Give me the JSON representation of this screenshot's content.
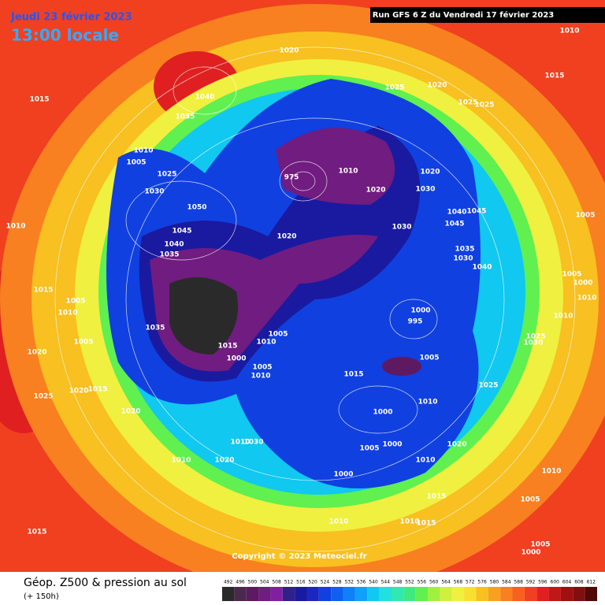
{
  "header": {
    "date": "Jeudi 23 février 2023",
    "time": "13:00 locale",
    "run": "Run GFS 6 Z du Vendredi 17 février 2023"
  },
  "map": {
    "copyright": "Copyright © 2023 Meteociel.fr",
    "isobar_labels": [
      1020,
      1040,
      1035,
      1015,
      1010,
      1015,
      1025,
      1020,
      1025,
      1025,
      1010,
      1005,
      1025,
      1030,
      1050,
      1045,
      1040,
      1035,
      1020,
      975,
      1010,
      1020,
      1030,
      1020,
      1040,
      1045,
      1045,
      1030,
      1035,
      1030,
      1040,
      1005,
      1005,
      1000,
      1010,
      1010,
      1015,
      1005,
      1010,
      1005,
      1035,
      1015,
      1000,
      1010,
      1005,
      1005,
      1010,
      1000,
      995,
      1005,
      1015,
      1025,
      1010,
      1000,
      1020,
      1025,
      1020,
      1015,
      1020,
      1010,
      1030,
      1010,
      1020,
      1005,
      1000,
      1020,
      1010,
      1000,
      1015,
      1010,
      1010,
      1015,
      1015,
      1005,
      1005,
      1000,
      1010,
      1010,
      1025,
      1030
    ]
  },
  "footer": {
    "title": "Géop. Z500 & pression au sol",
    "lead": "(+ 150h)"
  },
  "scale": {
    "values": [
      492,
      496,
      500,
      504,
      508,
      512,
      516,
      520,
      524,
      528,
      532,
      536,
      540,
      544,
      548,
      552,
      556,
      560,
      564,
      568,
      572,
      576,
      580,
      584,
      588,
      592,
      596,
      600,
      604,
      608,
      612
    ],
    "colors": [
      "#2a2a2a",
      "#4a2a4a",
      "#5e1a60",
      "#701c80",
      "#8020a0",
      "#30208a",
      "#1a1aa0",
      "#1a28c0",
      "#1040e0",
      "#1060f0",
      "#1080f8",
      "#10a0f8",
      "#10c8f0",
      "#20e0e0",
      "#30e8b0",
      "#40e880",
      "#60f050",
      "#a0f040",
      "#d0f040",
      "#f0f040",
      "#f8e030",
      "#f8c020",
      "#f8a020",
      "#f88020",
      "#f86020",
      "#f04020",
      "#e02020",
      "#c01818",
      "#a01010",
      "#801010",
      "#500808"
    ]
  }
}
